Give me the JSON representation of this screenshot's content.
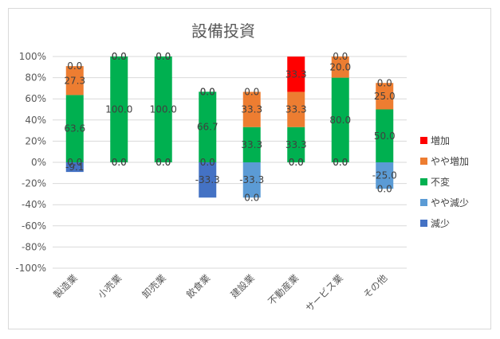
{
  "chart_data": {
    "type": "bar",
    "stacked": true,
    "title": "設備投資",
    "xlabel": "",
    "ylabel": "",
    "ylim": [
      -100,
      100
    ],
    "yticks": [
      "100%",
      "80%",
      "60%",
      "40%",
      "20%",
      "0%",
      "-20%",
      "-40%",
      "-60%",
      "-80%",
      "-100%"
    ],
    "grid": true,
    "legend_position": "right",
    "categories": [
      "製造業",
      "小売業",
      "卸売業",
      "飲食業",
      "建設業",
      "不動産業",
      "サービス業",
      "その他"
    ],
    "series": [
      {
        "name": "増加",
        "color": "#ff0000",
        "values": [
          0.0,
          0.0,
          0.0,
          0.0,
          0.0,
          33.3,
          0.0,
          0.0
        ]
      },
      {
        "name": "やや増加",
        "color": "#ed7d31",
        "values": [
          27.3,
          0.0,
          0.0,
          0.0,
          33.3,
          33.3,
          20.0,
          25.0
        ]
      },
      {
        "name": "不変",
        "color": "#00b050",
        "values": [
          63.6,
          100.0,
          100.0,
          66.7,
          33.3,
          33.3,
          80.0,
          50.0
        ]
      },
      {
        "name": "やや減少",
        "color": "#5b9bd5",
        "values": [
          0.0,
          0.0,
          0.0,
          0.0,
          -33.3,
          0.0,
          0.0,
          -25.0
        ]
      },
      {
        "name": "減少",
        "color": "#4472c4",
        "values": [
          -9.1,
          0.0,
          0.0,
          -33.3,
          0.0,
          0.0,
          0.0,
          0.0
        ]
      }
    ]
  }
}
